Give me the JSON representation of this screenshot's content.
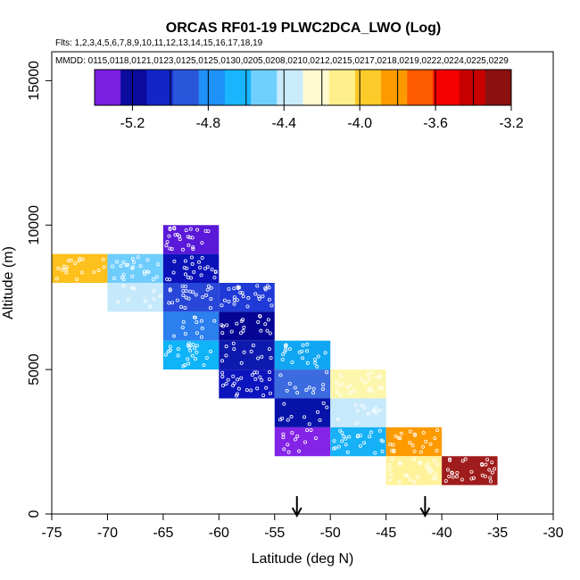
{
  "chart_data": {
    "type": "heatmap",
    "title": "ORCAS RF01-19 PLWC2DCA_LWO (Log)",
    "flights_label": "Flts: 1,2,3,4,5,6,7,8,9,10,11,12,13,14,15,16,17,18,19",
    "dates_label": "MMDD: 0115,0118,0121,0123,0125,0125,0130,0205,0208,0210,0212,0215,0217,0218,0219,0222,0224,0225,0229",
    "xlabel": "Latitude (deg N)",
    "ylabel": "Altitude (m)",
    "xlim": [
      -75,
      -30
    ],
    "ylim": [
      0,
      16000
    ],
    "x_ticks": [
      -75,
      -70,
      -65,
      -60,
      -55,
      -50,
      -45,
      -40,
      -35,
      -30
    ],
    "y_ticks": [
      0,
      5000,
      10000,
      15000
    ],
    "colorbar": {
      "colors": [
        "#7a1fe0",
        "#0b0b9e",
        "#1226c8",
        "#2a56dc",
        "#1f90f8",
        "#18b6ff",
        "#6fd0ff",
        "#c8ecfc",
        "#fffad0",
        "#fff08c",
        "#fdcb2a",
        "#fd9a00",
        "#fe5a00",
        "#f50000",
        "#c80000",
        "#8c1010"
      ],
      "ticks": [
        -5.2,
        -4.8,
        -4.4,
        -4.0,
        -3.6,
        -3.2
      ],
      "tick_labels": [
        "-5.2",
        "-4.8",
        "-4.4",
        "-4.0",
        "-3.6",
        "-3.2"
      ],
      "range": [
        -5.4,
        -3.2
      ]
    },
    "cells": [
      {
        "lat": [
          -75,
          -70
        ],
        "alt": [
          8000,
          9000
        ],
        "value": -3.8,
        "color": "#fdc01c"
      },
      {
        "lat": [
          -70,
          -65
        ],
        "alt": [
          8000,
          9000
        ],
        "value": -4.55,
        "color": "#6fcdfd"
      },
      {
        "lat": [
          -70,
          -65
        ],
        "alt": [
          7000,
          8000
        ],
        "value": -4.4,
        "color": "#c5e9fa"
      },
      {
        "lat": [
          -65,
          -60
        ],
        "alt": [
          9000,
          10000
        ],
        "value": -5.25,
        "color": "#5a18d8"
      },
      {
        "lat": [
          -65,
          -60
        ],
        "alt": [
          8000,
          9000
        ],
        "value": -5.05,
        "color": "#0a12b8"
      },
      {
        "lat": [
          -65,
          -60
        ],
        "alt": [
          7000,
          8000
        ],
        "value": -4.95,
        "color": "#2846d8"
      },
      {
        "lat": [
          -65,
          -60
        ],
        "alt": [
          6000,
          7000
        ],
        "value": -4.75,
        "color": "#2b7fee"
      },
      {
        "lat": [
          -65,
          -60
        ],
        "alt": [
          5000,
          6000
        ],
        "value": -4.65,
        "color": "#0fb3f8"
      },
      {
        "lat": [
          -60,
          -55
        ],
        "alt": [
          7000,
          8000
        ],
        "value": -5.0,
        "color": "#1f3ad6"
      },
      {
        "lat": [
          -60,
          -55
        ],
        "alt": [
          6000,
          7000
        ],
        "value": -5.1,
        "color": "#050595"
      },
      {
        "lat": [
          -60,
          -55
        ],
        "alt": [
          5000,
          6000
        ],
        "value": -5.05,
        "color": "#0e1aae"
      },
      {
        "lat": [
          -60,
          -55
        ],
        "alt": [
          4000,
          5000
        ],
        "value": -5.05,
        "color": "#0c14bd"
      },
      {
        "lat": [
          -55,
          -50
        ],
        "alt": [
          5000,
          6000
        ],
        "value": -4.65,
        "color": "#10a6f2"
      },
      {
        "lat": [
          -55,
          -50
        ],
        "alt": [
          4000,
          5000
        ],
        "value": -4.85,
        "color": "#3c6be0"
      },
      {
        "lat": [
          -55,
          -50
        ],
        "alt": [
          3000,
          4000
        ],
        "value": -5.05,
        "color": "#0612a8"
      },
      {
        "lat": [
          -55,
          -50
        ],
        "alt": [
          2000,
          3000
        ],
        "value": -5.25,
        "color": "#8424e6"
      },
      {
        "lat": [
          -50,
          -45
        ],
        "alt": [
          4000,
          5000
        ],
        "value": -4.15,
        "color": "#fdf7ad"
      },
      {
        "lat": [
          -50,
          -45
        ],
        "alt": [
          3000,
          4000
        ],
        "value": -4.4,
        "color": "#c6e9fb"
      },
      {
        "lat": [
          -50,
          -45
        ],
        "alt": [
          2000,
          3000
        ],
        "value": -4.65,
        "color": "#16b1f6"
      },
      {
        "lat": [
          -45,
          -40
        ],
        "alt": [
          2000,
          3000
        ],
        "value": -3.7,
        "color": "#fd9a00"
      },
      {
        "lat": [
          -45,
          -40
        ],
        "alt": [
          1000,
          2000
        ],
        "value": -4.1,
        "color": "#fff29a"
      },
      {
        "lat": [
          -40,
          -35
        ],
        "alt": [
          1000,
          2000
        ],
        "value": -3.25,
        "color": "#a01c1c"
      }
    ],
    "markers": [
      {
        "type": "down-arrow",
        "lat": -53
      },
      {
        "type": "down-arrow",
        "lat": -41.5
      }
    ]
  }
}
